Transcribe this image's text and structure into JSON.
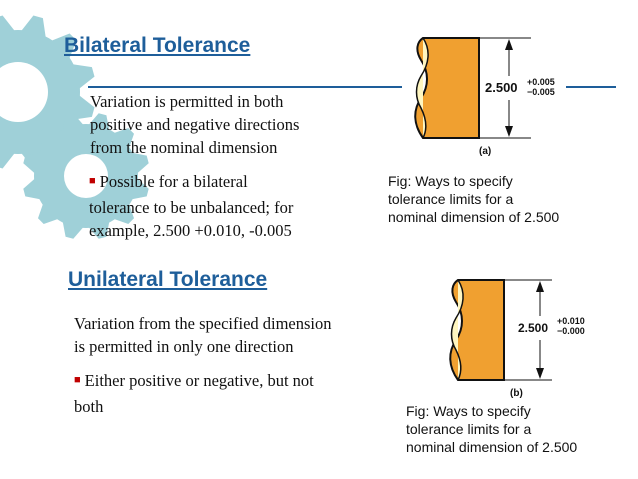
{
  "colors": {
    "heading": "#1e5e9a",
    "bullet": "#c00000",
    "gear_fill": "#9fd0d8",
    "part_fill": "#f0a030"
  },
  "bilateral": {
    "title": "Bilateral Tolerance",
    "para_lines": [
      "Variation is permitted in both",
      "positive and negative directions",
      "from the nominal dimension"
    ],
    "bullet_lines": [
      "Possible for a bilateral",
      "tolerance to be unbalanced; for",
      "example, 2.500 +0.010, -0.005"
    ],
    "figure": {
      "nominal": "2.500",
      "upper": "+0.005",
      "lower": "−0.005",
      "label": "(a)"
    },
    "caption_lines": [
      "Fig: Ways to specify",
      "tolerance limits for a",
      "nominal dimension of 2.500"
    ]
  },
  "unilateral": {
    "title": "Unilateral Tolerance",
    "para_lines": [
      "Variation from the specified dimension",
      "is permitted in only one direction"
    ],
    "bullet_lines": [
      "Either positive or negative, but not",
      "both"
    ],
    "figure": {
      "nominal": "2.500",
      "upper": "+0.010",
      "lower": "−0.000",
      "label": "(b)"
    },
    "caption_lines": [
      "Fig: Ways to specify",
      "tolerance limits for a",
      "nominal dimension of 2.500"
    ]
  },
  "icons": {
    "bullet": "square-bullet-icon",
    "decor": "gear-icon"
  }
}
